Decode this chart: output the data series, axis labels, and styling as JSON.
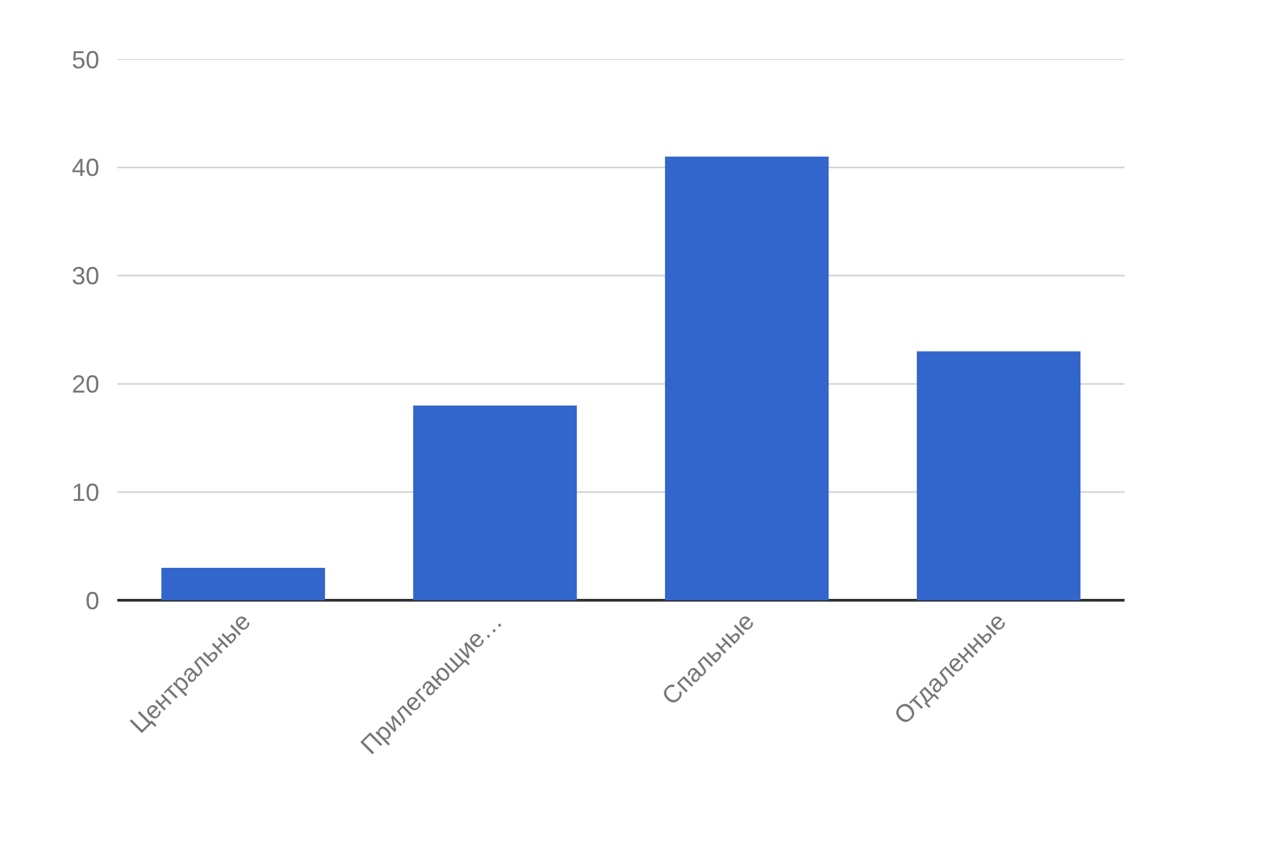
{
  "chart_data": {
    "type": "bar",
    "categories": [
      "Центральные",
      "Прилегающие…",
      "Спальные",
      "Отдаленные"
    ],
    "series": [
      {
        "color": "#3366cc",
        "values": [
          3,
          18,
          41,
          23
        ]
      }
    ],
    "ylim": [
      0,
      50
    ],
    "yticks": [
      0,
      10,
      20,
      30,
      40,
      50
    ],
    "grid": "y"
  }
}
